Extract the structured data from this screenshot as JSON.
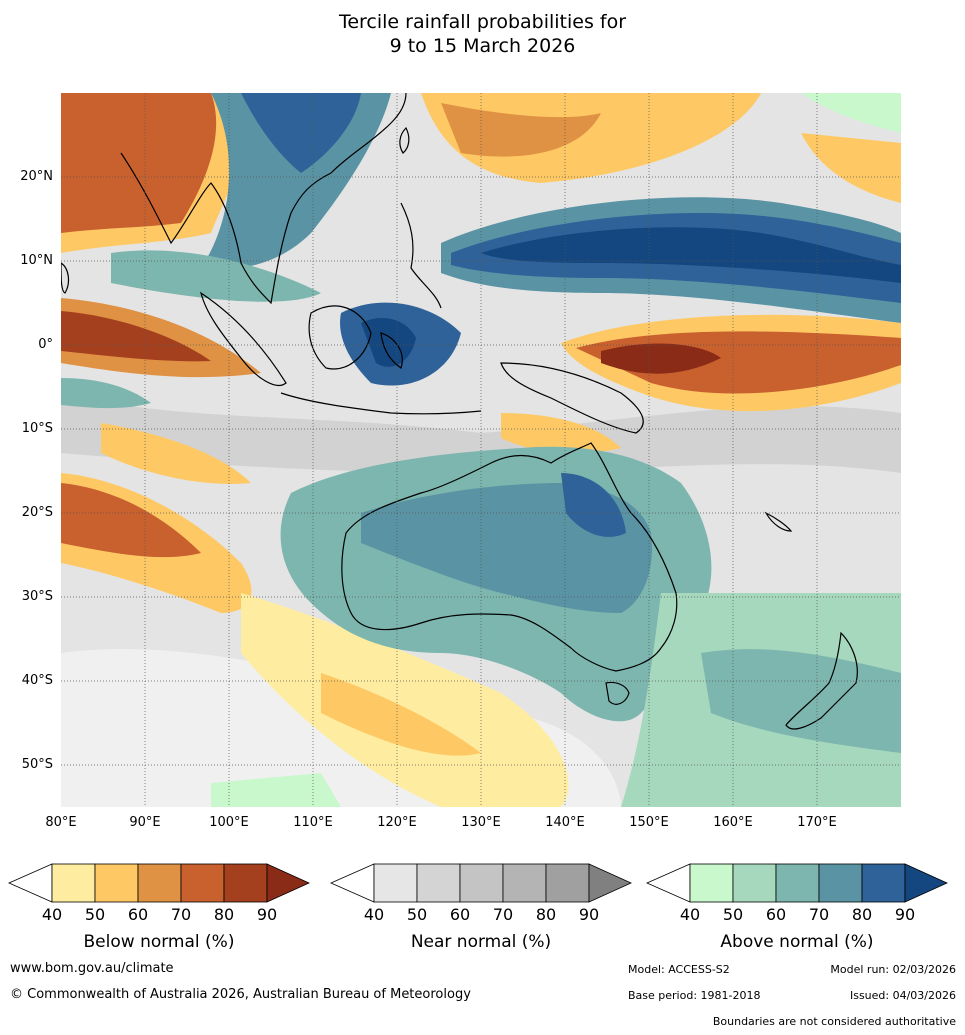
{
  "title_line1": "Tercile rainfall probabilities for",
  "title_line2": "9 to 15 March 2026",
  "lat_labels": [
    "20°N",
    "10°N",
    "0°",
    "10°S",
    "20°S",
    "30°S",
    "40°S",
    "50°S"
  ],
  "lon_labels": [
    "80°E",
    "90°E",
    "100°E",
    "110°E",
    "120°E",
    "130°E",
    "140°E",
    "150°E",
    "160°E",
    "170°E"
  ],
  "legend_ticks": [
    "40",
    "50",
    "60",
    "70",
    "80",
    "90"
  ],
  "legends": [
    {
      "label": "Below normal (%)",
      "colors": [
        "#ffffff",
        "#feeda0",
        "#fec965",
        "#e09244",
        "#c9612e",
        "#a5401f",
        "#8a2b17"
      ]
    },
    {
      "label": "Near normal (%)",
      "colors": [
        "#ffffff",
        "#e6e6e6",
        "#d4d4d4",
        "#c4c4c4",
        "#b4b4b4",
        "#a0a0a0",
        "#808080"
      ]
    },
    {
      "label": "Above normal (%)",
      "colors": [
        "#ffffff",
        "#c8f8cc",
        "#a5d8bd",
        "#7db6ae",
        "#5a94a4",
        "#2f6298",
        "#14477f"
      ]
    }
  ],
  "footer": {
    "website": "www.bom.gov.au/climate",
    "copyright": "© Commonwealth of Australia 2026, Australian Bureau of Meteorology",
    "model": "Model: ACCESS-S2",
    "model_run": "Model run: 02/03/2026",
    "base_period": "Base period: 1981-2018",
    "issued": "Issued: 04/03/2026",
    "boundaries": "Boundaries are not considered authoritative"
  }
}
